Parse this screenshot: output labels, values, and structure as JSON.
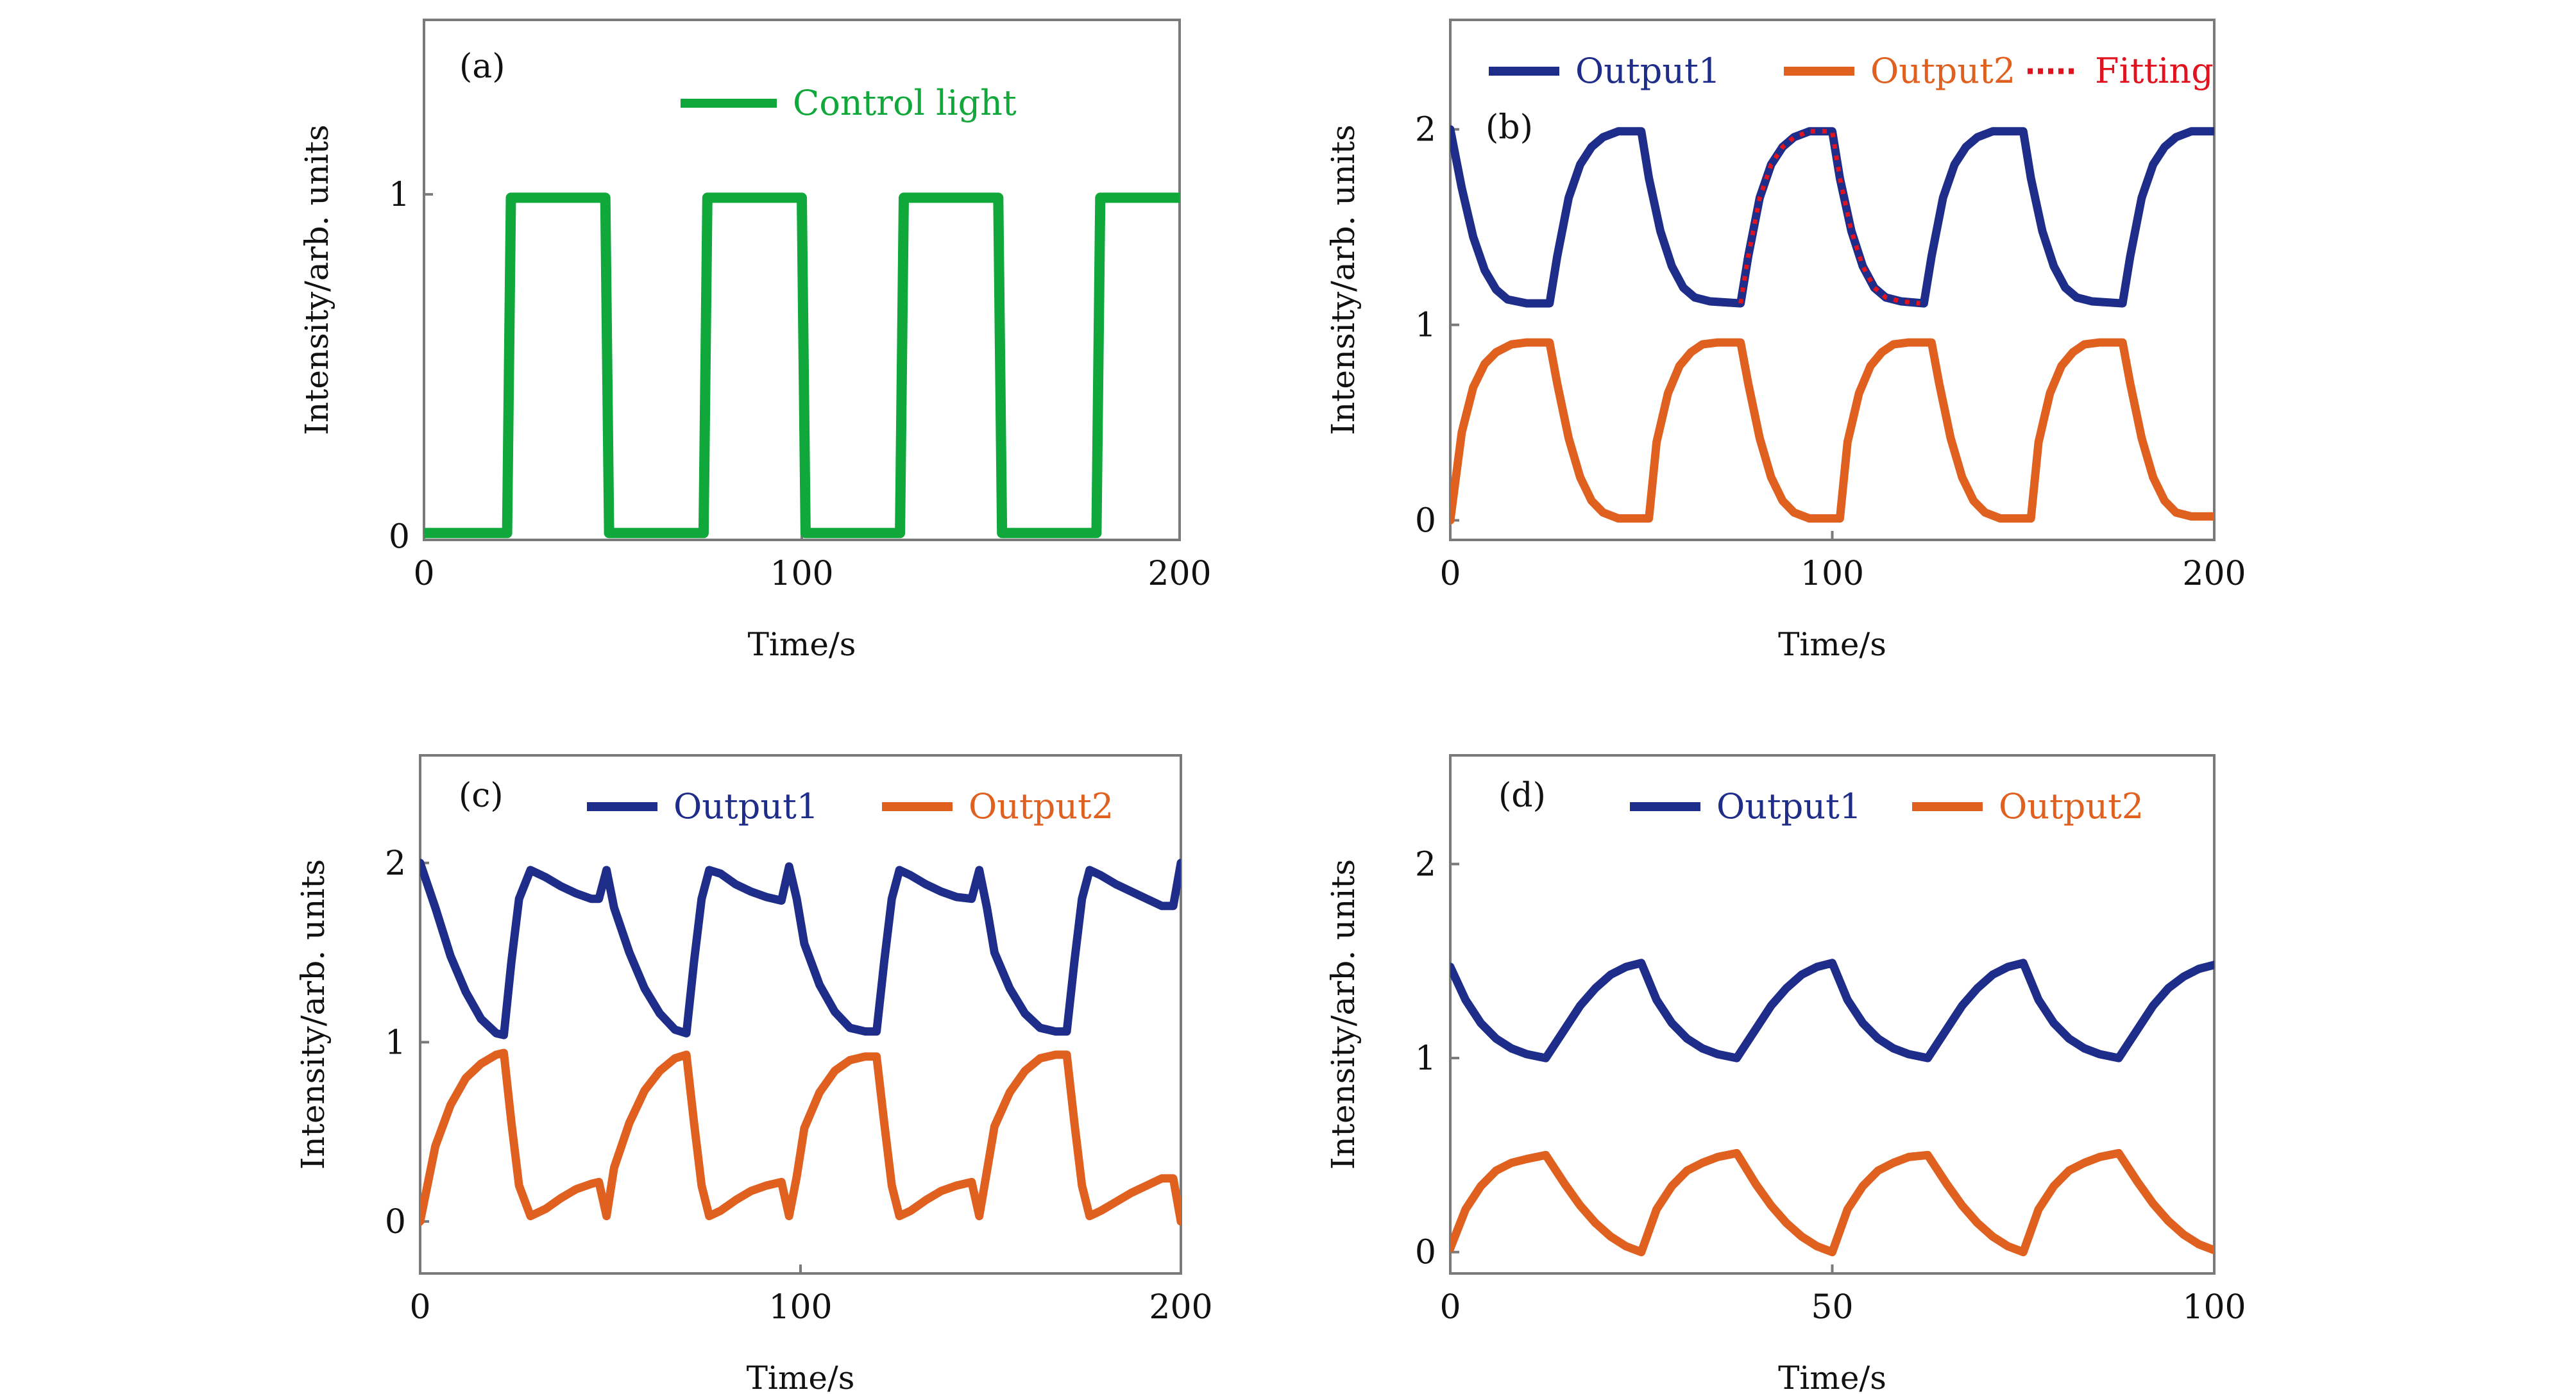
{
  "figure": {
    "axis_common": {
      "xlabel": "Time/s",
      "ylabel": "Intensity/arb. units"
    },
    "colors": {
      "control_light": "#10a83a",
      "output1": "#1f2d8a",
      "output2": "#e0601f",
      "fitting": "#e0141e",
      "frame": "#7a7a7a"
    }
  },
  "chart_data": [
    {
      "panel": "(a)",
      "type": "line",
      "title": "",
      "xlabel": "Time/s",
      "ylabel": "Intensity/arb. units",
      "xlim": [
        0,
        200
      ],
      "ylim": [
        -0.01,
        1.51
      ],
      "xticks": [
        0,
        100,
        200
      ],
      "yticks": [
        0,
        1
      ],
      "grid": false,
      "legend": {
        "position": "top-right",
        "entries": [
          "Control light"
        ]
      },
      "series": [
        {
          "name": "Control light",
          "style": "solid",
          "color_key": "control_light",
          "x": [
            0,
            22,
            23,
            48,
            49,
            74,
            75,
            100,
            101,
            126,
            127,
            152,
            153,
            178,
            179,
            200
          ],
          "y": [
            0.01,
            0.01,
            0.99,
            0.99,
            0.01,
            0.01,
            0.99,
            0.99,
            0.01,
            0.01,
            0.99,
            0.99,
            0.01,
            0.01,
            0.99,
            0.99
          ]
        }
      ]
    },
    {
      "panel": "(b)",
      "type": "line",
      "title": "",
      "xlabel": "Time/s",
      "ylabel": "Intensity/arb. units",
      "xlim": [
        0,
        200
      ],
      "ylim": [
        -0.1,
        2.56
      ],
      "xticks": [
        0,
        100,
        200
      ],
      "yticks": [
        0,
        1,
        2
      ],
      "grid": false,
      "legend": {
        "position": "top",
        "entries": [
          "Output1",
          "Output2",
          "Fitting"
        ]
      },
      "series": [
        {
          "name": "Output1",
          "style": "solid",
          "color_key": "output1",
          "x": [
            0,
            3,
            6,
            9,
            12,
            15,
            20,
            26,
            28,
            31,
            34,
            37,
            40,
            44,
            50,
            52,
            55,
            58,
            61,
            64,
            68,
            76,
            78,
            81,
            84,
            87,
            90,
            94,
            100,
            102,
            105,
            108,
            111,
            114,
            118,
            124,
            126,
            129,
            132,
            135,
            138,
            142,
            150,
            152,
            155,
            158,
            161,
            164,
            168,
            176,
            178,
            181,
            184,
            187,
            190,
            194,
            200
          ],
          "y": [
            2.0,
            1.7,
            1.45,
            1.28,
            1.18,
            1.13,
            1.11,
            1.11,
            1.35,
            1.65,
            1.82,
            1.91,
            1.96,
            1.99,
            1.99,
            1.75,
            1.48,
            1.3,
            1.19,
            1.14,
            1.12,
            1.11,
            1.35,
            1.65,
            1.82,
            1.91,
            1.96,
            1.99,
            1.99,
            1.75,
            1.48,
            1.3,
            1.19,
            1.14,
            1.12,
            1.11,
            1.35,
            1.65,
            1.82,
            1.91,
            1.96,
            1.99,
            1.99,
            1.75,
            1.48,
            1.3,
            1.19,
            1.14,
            1.12,
            1.11,
            1.35,
            1.65,
            1.82,
            1.91,
            1.96,
            1.99,
            1.99
          ]
        },
        {
          "name": "Output2",
          "style": "solid",
          "color_key": "output2",
          "x": [
            0,
            3,
            6,
            9,
            12,
            16,
            20,
            26,
            28,
            31,
            34,
            37,
            40,
            44,
            52,
            54,
            57,
            60,
            63,
            66,
            70,
            76,
            78,
            81,
            84,
            87,
            90,
            94,
            102,
            104,
            107,
            110,
            113,
            116,
            120,
            126,
            128,
            131,
            134,
            137,
            140,
            144,
            152,
            154,
            157,
            160,
            163,
            166,
            170,
            176,
            178,
            181,
            184,
            187,
            190,
            194,
            200
          ],
          "y": [
            0.0,
            0.45,
            0.68,
            0.8,
            0.86,
            0.9,
            0.91,
            0.91,
            0.7,
            0.42,
            0.22,
            0.1,
            0.04,
            0.01,
            0.01,
            0.4,
            0.65,
            0.79,
            0.86,
            0.9,
            0.91,
            0.91,
            0.7,
            0.42,
            0.22,
            0.1,
            0.04,
            0.01,
            0.01,
            0.4,
            0.65,
            0.79,
            0.86,
            0.9,
            0.91,
            0.91,
            0.7,
            0.42,
            0.22,
            0.1,
            0.04,
            0.01,
            0.01,
            0.4,
            0.65,
            0.79,
            0.86,
            0.9,
            0.91,
            0.91,
            0.7,
            0.42,
            0.22,
            0.1,
            0.04,
            0.02,
            0.02
          ]
        },
        {
          "name": "Fitting",
          "style": "dotted",
          "color_key": "fitting",
          "x": [
            76,
            78,
            81,
            84,
            87,
            90,
            94,
            100,
            102,
            105,
            108,
            111,
            114,
            118,
            123
          ],
          "y": [
            1.11,
            1.35,
            1.65,
            1.82,
            1.91,
            1.96,
            1.99,
            1.99,
            1.75,
            1.48,
            1.3,
            1.19,
            1.14,
            1.12,
            1.11
          ]
        }
      ]
    },
    {
      "panel": "(c)",
      "type": "line",
      "title": "",
      "xlabel": "Time/s",
      "ylabel": "Intensity/arb. units",
      "xlim": [
        0,
        200
      ],
      "ylim": [
        -0.29,
        2.6
      ],
      "xticks": [
        0,
        100,
        200
      ],
      "yticks": [
        0,
        1,
        2
      ],
      "grid": false,
      "legend": {
        "position": "top",
        "entries": [
          "Output1",
          "Output2"
        ]
      },
      "series": [
        {
          "name": "Output1",
          "style": "solid",
          "color_key": "output1",
          "x": [
            0,
            4,
            8,
            12,
            16,
            20,
            22,
            24,
            26,
            29,
            33,
            37,
            41,
            45,
            47,
            49,
            51,
            55,
            59,
            63,
            67,
            70,
            72,
            74,
            76,
            79,
            83,
            87,
            91,
            95,
            97,
            99,
            101,
            105,
            109,
            113,
            117,
            120,
            122,
            124,
            126,
            129,
            133,
            137,
            141,
            145,
            147,
            149,
            151,
            155,
            159,
            163,
            167,
            170,
            172,
            174,
            176,
            179,
            183,
            187,
            191,
            195,
            198,
            200
          ],
          "y": [
            2.0,
            1.75,
            1.48,
            1.28,
            1.13,
            1.05,
            1.04,
            1.45,
            1.8,
            1.96,
            1.92,
            1.87,
            1.83,
            1.8,
            1.8,
            1.96,
            1.75,
            1.5,
            1.3,
            1.16,
            1.07,
            1.05,
            1.45,
            1.8,
            1.96,
            1.94,
            1.88,
            1.84,
            1.81,
            1.79,
            1.98,
            1.8,
            1.55,
            1.32,
            1.17,
            1.08,
            1.06,
            1.06,
            1.45,
            1.8,
            1.96,
            1.93,
            1.88,
            1.84,
            1.81,
            1.8,
            1.96,
            1.75,
            1.5,
            1.3,
            1.16,
            1.08,
            1.06,
            1.06,
            1.45,
            1.8,
            1.96,
            1.93,
            1.88,
            1.84,
            1.8,
            1.76,
            1.76,
            2.0
          ]
        },
        {
          "name": "Output2",
          "style": "solid",
          "color_key": "output2",
          "x": [
            0,
            4,
            8,
            12,
            16,
            20,
            22,
            24,
            26,
            29,
            33,
            37,
            41,
            45,
            47,
            49,
            51,
            55,
            59,
            63,
            67,
            70,
            72,
            74,
            76,
            79,
            83,
            87,
            91,
            95,
            97,
            99,
            101,
            105,
            109,
            113,
            117,
            120,
            122,
            124,
            126,
            129,
            133,
            137,
            141,
            145,
            147,
            149,
            151,
            155,
            159,
            163,
            167,
            170,
            172,
            174,
            176,
            179,
            183,
            187,
            191,
            195,
            198,
            200
          ],
          "y": [
            0.0,
            0.42,
            0.65,
            0.8,
            0.88,
            0.93,
            0.94,
            0.55,
            0.2,
            0.03,
            0.07,
            0.13,
            0.18,
            0.21,
            0.22,
            0.03,
            0.3,
            0.55,
            0.73,
            0.84,
            0.91,
            0.93,
            0.55,
            0.2,
            0.03,
            0.06,
            0.12,
            0.17,
            0.2,
            0.22,
            0.03,
            0.25,
            0.52,
            0.72,
            0.84,
            0.9,
            0.92,
            0.92,
            0.55,
            0.2,
            0.03,
            0.06,
            0.12,
            0.17,
            0.2,
            0.22,
            0.03,
            0.28,
            0.53,
            0.72,
            0.84,
            0.91,
            0.93,
            0.93,
            0.55,
            0.2,
            0.03,
            0.06,
            0.11,
            0.16,
            0.2,
            0.24,
            0.24,
            0.0
          ]
        }
      ]
    },
    {
      "panel": "(d)",
      "type": "line",
      "title": "",
      "xlabel": "Time/s",
      "ylabel": "Intensity/arb. units",
      "xlim": [
        0,
        100
      ],
      "ylim": [
        -0.11,
        2.56
      ],
      "xticks": [
        0,
        50,
        100
      ],
      "yticks": [
        0,
        1,
        2
      ],
      "grid": false,
      "legend": {
        "position": "top",
        "entries": [
          "Output1",
          "Output2"
        ]
      },
      "series": [
        {
          "name": "Output1",
          "style": "solid",
          "color_key": "output1",
          "x": [
            0,
            2,
            4,
            6,
            8,
            10,
            12.5,
            15,
            17,
            19,
            21,
            23,
            25,
            27,
            29,
            31,
            33,
            35,
            37.5,
            40,
            42,
            44,
            46,
            48,
            50,
            52,
            54,
            56,
            58,
            60,
            62.5,
            65,
            67,
            69,
            71,
            73,
            75,
            77,
            79,
            81,
            83,
            85,
            87.5,
            90,
            92,
            94,
            96,
            98,
            100
          ],
          "y": [
            1.47,
            1.3,
            1.18,
            1.1,
            1.05,
            1.02,
            1.0,
            1.15,
            1.27,
            1.36,
            1.43,
            1.47,
            1.49,
            1.3,
            1.18,
            1.1,
            1.05,
            1.02,
            1.0,
            1.15,
            1.27,
            1.36,
            1.43,
            1.47,
            1.49,
            1.3,
            1.18,
            1.1,
            1.05,
            1.02,
            1.0,
            1.15,
            1.27,
            1.36,
            1.43,
            1.47,
            1.49,
            1.3,
            1.18,
            1.1,
            1.05,
            1.02,
            1.0,
            1.15,
            1.27,
            1.36,
            1.42,
            1.46,
            1.48
          ]
        },
        {
          "name": "Output2",
          "style": "solid",
          "color_key": "output2",
          "x": [
            0,
            2,
            4,
            6,
            8,
            10,
            12.5,
            15,
            17,
            19,
            21,
            23,
            25,
            27,
            29,
            31,
            33,
            35,
            37.5,
            40,
            42,
            44,
            46,
            48,
            50,
            52,
            54,
            56,
            58,
            60,
            62.5,
            65,
            67,
            69,
            71,
            73,
            75,
            77,
            79,
            81,
            83,
            85,
            87.5,
            90,
            92,
            94,
            96,
            98,
            100
          ],
          "y": [
            0.02,
            0.22,
            0.34,
            0.42,
            0.46,
            0.48,
            0.5,
            0.35,
            0.24,
            0.15,
            0.08,
            0.03,
            0.0,
            0.22,
            0.34,
            0.42,
            0.46,
            0.49,
            0.51,
            0.35,
            0.24,
            0.15,
            0.08,
            0.03,
            0.0,
            0.22,
            0.34,
            0.42,
            0.46,
            0.49,
            0.5,
            0.35,
            0.24,
            0.15,
            0.08,
            0.03,
            0.0,
            0.22,
            0.34,
            0.42,
            0.46,
            0.49,
            0.51,
            0.36,
            0.25,
            0.16,
            0.09,
            0.04,
            0.01
          ]
        }
      ]
    }
  ]
}
